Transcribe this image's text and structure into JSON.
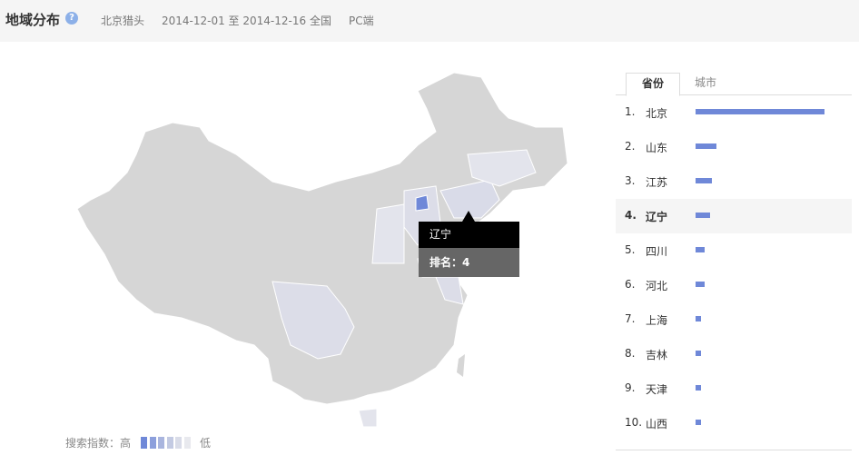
{
  "header": {
    "title": "地域分布",
    "help_icon": "question-icon",
    "keyword": "北京猎头",
    "date_range": "2014-12-01 至 2014-12-16",
    "region": "全国",
    "platform": "PC端"
  },
  "tooltip": {
    "province": "辽宁",
    "rank_label": "排名：4"
  },
  "legend": {
    "label": "搜索指数：高",
    "low": "低",
    "colors": [
      "#6f88d8",
      "#8c9fdc",
      "#a9b5de",
      "#c3cae2",
      "#d9dce8",
      "#e8e9ee"
    ]
  },
  "tabs": [
    {
      "label": "省份",
      "active": true
    },
    {
      "label": "城市",
      "active": false
    }
  ],
  "ranking": [
    {
      "rank": "1.",
      "name": "北京",
      "value_pct": 100
    },
    {
      "rank": "2.",
      "name": "山东",
      "value_pct": 16
    },
    {
      "rank": "3.",
      "name": "江苏",
      "value_pct": 13
    },
    {
      "rank": "4.",
      "name": "辽宁",
      "value_pct": 11,
      "highlighted": true
    },
    {
      "rank": "5.",
      "name": "四川",
      "value_pct": 7
    },
    {
      "rank": "6.",
      "name": "河北",
      "value_pct": 7
    },
    {
      "rank": "7.",
      "name": "上海",
      "value_pct": 4
    },
    {
      "rank": "8.",
      "name": "吉林",
      "value_pct": 4
    },
    {
      "rank": "9.",
      "name": "天津",
      "value_pct": 4
    },
    {
      "rank": "10.",
      "name": "山西",
      "value_pct": 4
    }
  ],
  "colors": {
    "bar": "#6f88d8",
    "map_default": "#d6d6d6"
  }
}
